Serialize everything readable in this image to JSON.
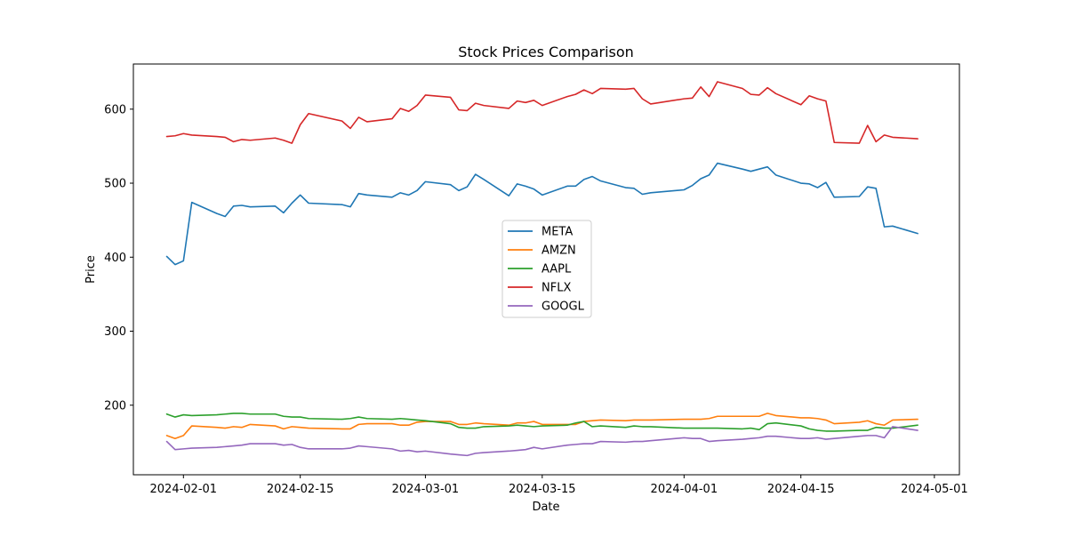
{
  "chart_data": {
    "type": "line",
    "title": "Stock Prices Comparison",
    "xlabel": "Date",
    "ylabel": "Price",
    "xlim": [
      "2024-01-26",
      "2024-05-04"
    ],
    "ylim": [
      106,
      661
    ],
    "x_ticks": [
      {
        "date": "2024-02-01",
        "label": "2024-02-01"
      },
      {
        "date": "2024-02-15",
        "label": "2024-02-15"
      },
      {
        "date": "2024-03-01",
        "label": "2024-03-01"
      },
      {
        "date": "2024-03-15",
        "label": "2024-03-15"
      },
      {
        "date": "2024-04-01",
        "label": "2024-04-01"
      },
      {
        "date": "2024-04-15",
        "label": "2024-04-15"
      },
      {
        "date": "2024-05-01",
        "label": "2024-05-01"
      }
    ],
    "y_ticks": [
      200,
      300,
      400,
      500,
      600
    ],
    "grid": false,
    "legend_position": "center",
    "dates": [
      "2024-01-30",
      "2024-01-31",
      "2024-02-01",
      "2024-02-02",
      "2024-02-05",
      "2024-02-06",
      "2024-02-07",
      "2024-02-08",
      "2024-02-09",
      "2024-02-12",
      "2024-02-13",
      "2024-02-14",
      "2024-02-15",
      "2024-02-16",
      "2024-02-20",
      "2024-02-21",
      "2024-02-22",
      "2024-02-23",
      "2024-02-26",
      "2024-02-27",
      "2024-02-28",
      "2024-02-29",
      "2024-03-01",
      "2024-03-04",
      "2024-03-05",
      "2024-03-06",
      "2024-03-07",
      "2024-03-08",
      "2024-03-11",
      "2024-03-12",
      "2024-03-13",
      "2024-03-14",
      "2024-03-15",
      "2024-03-18",
      "2024-03-19",
      "2024-03-20",
      "2024-03-21",
      "2024-03-22",
      "2024-03-25",
      "2024-03-26",
      "2024-03-27",
      "2024-03-28",
      "2024-04-01",
      "2024-04-02",
      "2024-04-03",
      "2024-04-04",
      "2024-04-05",
      "2024-04-08",
      "2024-04-09",
      "2024-04-10",
      "2024-04-11",
      "2024-04-12",
      "2024-04-15",
      "2024-04-16",
      "2024-04-17",
      "2024-04-18",
      "2024-04-19",
      "2024-04-22",
      "2024-04-23",
      "2024-04-24",
      "2024-04-25",
      "2024-04-26",
      "2024-04-29"
    ],
    "series": [
      {
        "name": "META",
        "color": "#1f77b4",
        "values": [
          401,
          390,
          395,
          474,
          459,
          455,
          469,
          470,
          468,
          469,
          460,
          473,
          484,
          473,
          471,
          468,
          486,
          484,
          481,
          487,
          484,
          490,
          502,
          498,
          490,
          495,
          512,
          505,
          483,
          499,
          496,
          492,
          484,
          496,
          496,
          505,
          509,
          503,
          494,
          493,
          485,
          487,
          491,
          497,
          506,
          511,
          527,
          519,
          516,
          519,
          522,
          511,
          500,
          499,
          494,
          501,
          481,
          482,
          495,
          493,
          441,
          442,
          432
        ]
      },
      {
        "name": "AMZN",
        "color": "#ff7f0e",
        "values": [
          159,
          155,
          159,
          172,
          170,
          169,
          171,
          170,
          174,
          172,
          168,
          171,
          170,
          169,
          168,
          168,
          174,
          175,
          175,
          173,
          173,
          177,
          178,
          178,
          174,
          174,
          176,
          175,
          173,
          176,
          176,
          178,
          174,
          174,
          174,
          178,
          179,
          180,
          179,
          180,
          180,
          180,
          181,
          181,
          181,
          182,
          185,
          185,
          185,
          185,
          189,
          186,
          183,
          183,
          182,
          180,
          175,
          177,
          179,
          175,
          173,
          180,
          181
        ]
      },
      {
        "name": "AAPL",
        "color": "#2ca02c",
        "values": [
          188,
          184,
          187,
          186,
          187,
          188,
          189,
          189,
          188,
          188,
          185,
          184,
          184,
          182,
          181,
          182,
          184,
          182,
          181,
          182,
          181,
          180,
          179,
          175,
          170,
          169,
          169,
          171,
          172,
          173,
          172,
          171,
          172,
          173,
          176,
          178,
          171,
          172,
          170,
          172,
          171,
          171,
          169,
          169,
          169,
          169,
          169,
          168,
          169,
          167,
          175,
          176,
          172,
          168,
          166,
          165,
          165,
          166,
          166,
          170,
          169,
          169,
          173
        ]
      },
      {
        "name": "NFLX",
        "color": "#d62728",
        "values": [
          563,
          564,
          567,
          565,
          563,
          562,
          556,
          559,
          558,
          561,
          558,
          554,
          579,
          594,
          584,
          574,
          589,
          583,
          587,
          601,
          597,
          605,
          619,
          616,
          599,
          598,
          608,
          605,
          601,
          611,
          609,
          612,
          605,
          617,
          620,
          626,
          621,
          628,
          627,
          628,
          614,
          607,
          614,
          615,
          630,
          617,
          637,
          628,
          620,
          619,
          629,
          621,
          606,
          618,
          614,
          611,
          555,
          554,
          578,
          556,
          565,
          562,
          560
        ]
      },
      {
        "name": "GOOGL",
        "color": "#9467bd",
        "values": [
          151,
          140,
          141,
          142,
          143,
          144,
          145,
          146,
          148,
          148,
          146,
          147,
          143,
          141,
          141,
          142,
          145,
          144,
          141,
          138,
          139,
          137,
          138,
          134,
          133,
          132,
          135,
          136,
          138,
          139,
          140,
          143,
          141,
          146,
          147,
          148,
          148,
          151,
          150,
          151,
          151,
          152,
          156,
          155,
          155,
          151,
          152,
          154,
          155,
          156,
          158,
          158,
          155,
          155,
          156,
          154,
          155,
          158,
          159,
          159,
          156,
          171,
          166
        ]
      }
    ]
  }
}
